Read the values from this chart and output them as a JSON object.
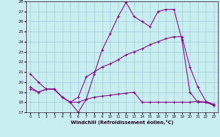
{
  "title": "",
  "xlabel": "Windchill (Refroidissement éolien,°C)",
  "ylabel": "",
  "xlim": [
    -0.5,
    23.5
  ],
  "ylim": [
    17,
    28
  ],
  "yticks": [
    17,
    18,
    19,
    20,
    21,
    22,
    23,
    24,
    25,
    26,
    27,
    28
  ],
  "xticks": [
    0,
    1,
    2,
    3,
    4,
    5,
    6,
    7,
    8,
    9,
    10,
    11,
    12,
    13,
    14,
    15,
    16,
    17,
    18,
    19,
    20,
    21,
    22,
    23
  ],
  "background_color": "#c8eef0",
  "grid_color": "#a0c8d8",
  "line_color": "#880088",
  "line1_x": [
    0,
    1,
    2,
    3,
    4,
    5,
    6,
    7,
    8,
    9,
    10,
    11,
    12,
    13,
    14,
    15,
    16,
    17,
    18,
    19,
    20,
    21,
    22,
    23
  ],
  "line1_y": [
    20.8,
    20.0,
    19.3,
    19.3,
    18.5,
    18.0,
    17.0,
    18.3,
    20.8,
    23.2,
    24.8,
    26.5,
    27.9,
    26.5,
    26.0,
    25.5,
    27.0,
    27.2,
    27.2,
    24.2,
    19.0,
    18.0,
    18.0,
    17.7
  ],
  "line2_x": [
    0,
    1,
    2,
    3,
    4,
    5,
    6,
    7,
    8,
    9,
    10,
    11,
    12,
    13,
    14,
    15,
    16,
    17,
    18,
    19,
    20,
    21,
    22,
    23
  ],
  "line2_y": [
    19.5,
    19.0,
    19.3,
    19.3,
    18.5,
    18.0,
    18.5,
    20.5,
    21.0,
    21.5,
    21.8,
    22.2,
    22.7,
    23.0,
    23.3,
    23.7,
    24.0,
    24.3,
    24.5,
    24.5,
    21.5,
    19.5,
    18.1,
    17.8
  ],
  "line3_x": [
    0,
    1,
    2,
    3,
    4,
    5,
    6,
    7,
    8,
    9,
    10,
    11,
    12,
    13,
    14,
    15,
    16,
    17,
    18,
    19,
    20,
    21,
    22,
    23
  ],
  "line3_y": [
    19.3,
    19.0,
    19.3,
    19.3,
    18.5,
    18.0,
    18.0,
    18.3,
    18.5,
    18.6,
    18.7,
    18.8,
    18.9,
    19.0,
    18.0,
    18.0,
    18.0,
    18.0,
    18.0,
    18.0,
    18.0,
    18.1,
    18.0,
    17.7
  ]
}
